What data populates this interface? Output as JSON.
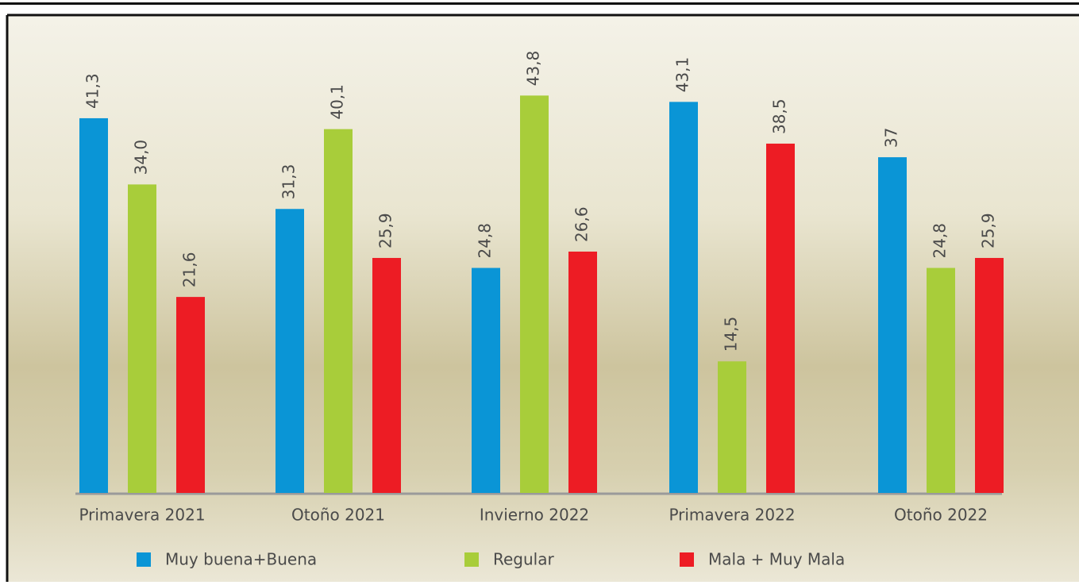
{
  "chart_data": {
    "type": "bar",
    "categories": [
      "Primavera 2021",
      "Otoño 2021",
      "Invierno 2022",
      "Primavera 2022",
      "Otoño 2022"
    ],
    "series": [
      {
        "name": "Muy buena+Buena",
        "color": "#0a95d6",
        "values": [
          41.3,
          31.3,
          24.8,
          43.1,
          37
        ],
        "value_labels": [
          "41,3",
          "31,3",
          "24,8",
          "43,1",
          "37"
        ]
      },
      {
        "name": "Regular",
        "color": "#a8cd3a",
        "values": [
          34.0,
          40.1,
          43.8,
          14.5,
          24.8
        ],
        "value_labels": [
          "34,0",
          "40,1",
          "43,8",
          "14,5",
          "24,8"
        ]
      },
      {
        "name": "Mala + Muy Mala",
        "color": "#ed1c24",
        "values": [
          21.6,
          25.9,
          26.6,
          38.5,
          25.9
        ],
        "value_labels": [
          "21,6",
          "25,9",
          "26,6",
          "38,5",
          "25,9"
        ]
      }
    ]
  }
}
